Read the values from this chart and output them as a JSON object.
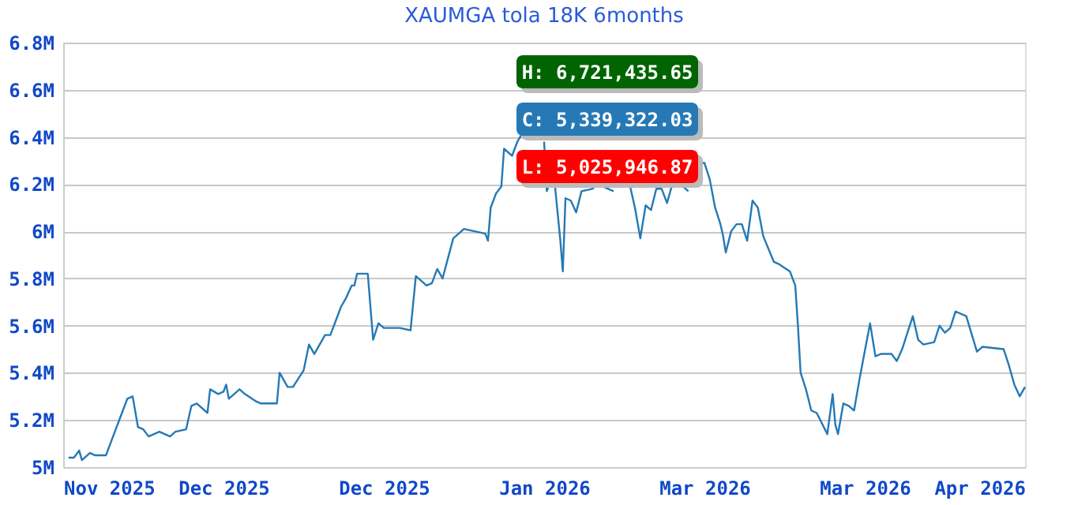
{
  "chart_data": {
    "type": "line",
    "title": "XAUMGA tola 18K 6months",
    "x": [
      "2025-11-02",
      "2025-11-03",
      "2025-11-04",
      "2025-11-04T12:00",
      "2025-11-06",
      "2025-11-07",
      "2025-11-09",
      "2025-11-11",
      "2025-11-11T12:00",
      "2025-11-13",
      "2025-11-14",
      "2025-11-15",
      "2025-11-16",
      "2025-11-17",
      "2025-11-18",
      "2025-11-19",
      "2025-11-21",
      "2025-11-22",
      "2025-11-24",
      "2025-11-25",
      "2025-11-26",
      "2025-11-28",
      "2025-11-28T12:00",
      "2025-11-30",
      "2025-12-01",
      "2025-12-01T12:00",
      "2025-12-02",
      "2025-12-04",
      "2025-12-05",
      "2025-12-07",
      "2025-12-08",
      "2025-12-11",
      "2025-12-11T12:00",
      "2025-12-13",
      "2025-12-14",
      "2025-12-16",
      "2025-12-17",
      "2025-12-18",
      "2025-12-20",
      "2025-12-21",
      "2025-12-23",
      "2025-12-24",
      "2025-12-25",
      "2025-12-25T12:00",
      "2025-12-26",
      "2025-12-28",
      "2025-12-29",
      "2025-12-30",
      "2025-12-31",
      "2026-01-03",
      "2026-01-05",
      "2026-01-06",
      "2026-01-08",
      "2026-01-09",
      "2026-01-10",
      "2026-01-11",
      "2026-01-13",
      "2026-01-14",
      "2026-01-15",
      "2026-01-17",
      "2026-01-19",
      "2026-01-19T12:00",
      "2026-01-20",
      "2026-01-21",
      "2026-01-22",
      "2026-01-22T12:00",
      "2026-01-24",
      "2026-01-25",
      "2026-01-26",
      "2026-01-27",
      "2026-01-28",
      "2026-01-29",
      "2026-01-30",
      "2026-01-30T12:00",
      "2026-01-31",
      "2026-02-01",
      "2026-02-02",
      "2026-02-02T12:00",
      "2026-02-03",
      "2026-02-04",
      "2026-02-05",
      "2026-02-06",
      "2026-02-08",
      "2026-02-09",
      "2026-02-12",
      "2026-02-14",
      "2026-02-15",
      "2026-02-16",
      "2026-02-17",
      "2026-02-18",
      "2026-02-19",
      "2026-02-20",
      "2026-02-21",
      "2026-02-22",
      "2026-02-23",
      "2026-02-25",
      "2026-02-26",
      "2026-02-26T12:00",
      "2026-02-28",
      "2026-03-01",
      "2026-03-02",
      "2026-03-03",
      "2026-03-04",
      "2026-03-04T12:00",
      "2026-03-05",
      "2026-03-06",
      "2026-03-07",
      "2026-03-08",
      "2026-03-09",
      "2026-03-10",
      "2026-03-11",
      "2026-03-12",
      "2026-03-14",
      "2026-03-15",
      "2026-03-17",
      "2026-03-18",
      "2026-03-18T12:00",
      "2026-03-19",
      "2026-03-20",
      "2026-03-21",
      "2026-03-22",
      "2026-03-24",
      "2026-03-25",
      "2026-03-25T12:00",
      "2026-03-26",
      "2026-03-27",
      "2026-03-28",
      "2026-03-29",
      "2026-03-30",
      "2026-03-31",
      "2026-04-01",
      "2026-04-02",
      "2026-04-03",
      "2026-04-05",
      "2026-04-06",
      "2026-04-07",
      "2026-04-09",
      "2026-04-10",
      "2026-04-11",
      "2026-04-13",
      "2026-04-14",
      "2026-04-15",
      "2026-04-16",
      "2026-04-17",
      "2026-04-19",
      "2026-04-21",
      "2026-04-22",
      "2026-04-26",
      "2026-04-27",
      "2026-04-28",
      "2026-04-29",
      "2026-04-30"
    ],
    "series": [
      {
        "color": "#2479b5",
        "values": [
          5040000,
          5040000,
          5070000,
          5030000,
          5060000,
          5050000,
          5050000,
          5170000,
          5200000,
          5290000,
          5300000,
          5170000,
          5160000,
          5130000,
          5140000,
          5150000,
          5130000,
          5150000,
          5160000,
          5260000,
          5270000,
          5230000,
          5330000,
          5310000,
          5320000,
          5350000,
          5290000,
          5330000,
          5310000,
          5280000,
          5270000,
          5270000,
          5400000,
          5340000,
          5340000,
          5410000,
          5520000,
          5480000,
          5560000,
          5560000,
          5680000,
          5720000,
          5770000,
          5770000,
          5820000,
          5820000,
          5540000,
          5610000,
          5590000,
          5590000,
          5580000,
          5810000,
          5770000,
          5780000,
          5840000,
          5800000,
          5970000,
          5990000,
          6010000,
          6000000,
          5990000,
          5960000,
          6100000,
          6160000,
          6190000,
          6350000,
          6320000,
          6380000,
          6420000,
          6400000,
          null,
          null,
          6380000,
          6170000,
          6200000,
          6200000,
          5970000,
          5830000,
          6140000,
          6130000,
          6080000,
          6170000,
          6180000,
          6200000,
          6170000,
          null,
          6200000,
          6100000,
          5970000,
          6110000,
          6090000,
          6180000,
          6180000,
          6120000,
          6200000,
          6190000,
          6170000,
          null,
          6290000,
          6290000,
          6220000,
          6100000,
          6030000,
          5980000,
          5910000,
          6000000,
          6030000,
          6030000,
          5960000,
          6130000,
          6100000,
          5980000,
          5870000,
          5860000,
          5830000,
          5770000,
          5600000,
          5400000,
          5330000,
          5240000,
          5230000,
          5140000,
          5310000,
          5180000,
          5140000,
          5270000,
          5260000,
          5240000,
          5370000,
          5490000,
          5610000,
          5470000,
          5480000,
          5480000,
          5450000,
          5500000,
          5640000,
          5540000,
          5520000,
          5530000,
          5600000,
          5570000,
          5590000,
          5660000,
          5640000,
          5490000,
          5510000,
          5500000,
          5430000,
          5350000,
          5300000,
          5340000
        ]
      }
    ],
    "xlim": [
      "2025-11-01",
      "2026-04-30"
    ],
    "xticks": [
      {
        "value": "2025-11-01",
        "label": "Nov 2025"
      },
      {
        "value": "2025-12-01",
        "label": "Dec 2025"
      },
      {
        "value": "2025-12-31",
        "label": "Dec 2025"
      },
      {
        "value": "2026-01-30",
        "label": "Jan 2026"
      },
      {
        "value": "2026-03-01",
        "label": "Mar 2026"
      },
      {
        "value": "2026-03-31",
        "label": "Mar 2026"
      },
      {
        "value": "2026-04-30",
        "label": "Apr 2026"
      }
    ],
    "ylim": [
      5000000,
      6800000
    ],
    "yticks": [
      {
        "value": 5000000,
        "label": "5M"
      },
      {
        "value": 5200000,
        "label": "5.2M"
      },
      {
        "value": 5400000,
        "label": "5.4M"
      },
      {
        "value": 5600000,
        "label": "5.6M"
      },
      {
        "value": 5800000,
        "label": "5.8M"
      },
      {
        "value": 6000000,
        "label": "6M"
      },
      {
        "value": 6200000,
        "label": "6.2M"
      },
      {
        "value": 6400000,
        "label": "6.4M"
      },
      {
        "value": 6600000,
        "label": "6.6M"
      },
      {
        "value": 6800000,
        "label": "6.8M"
      }
    ],
    "grid": "y",
    "annotations": [
      "H: 6,721,435.65",
      "C: 5,339,322.03",
      "L: 5,025,946.87"
    ]
  }
}
